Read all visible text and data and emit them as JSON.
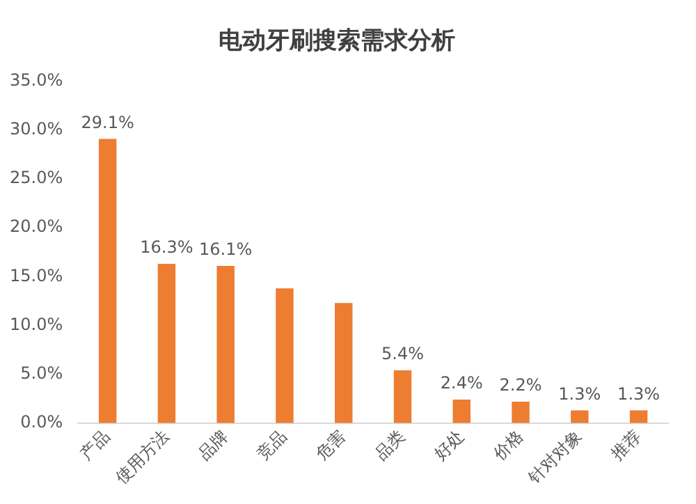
{
  "chart_data": {
    "type": "bar",
    "title": "电动牙刷搜索需求分析",
    "categories": [
      "产品",
      "使用方法",
      "品牌",
      "竞品",
      "危害",
      "品类",
      "好处",
      "价格",
      "针对对象",
      "推荐"
    ],
    "values": [
      29.1,
      16.3,
      16.1,
      13.8,
      12.3,
      5.4,
      2.4,
      2.2,
      1.3,
      1.3
    ],
    "value_labels": [
      "29.1%",
      "16.3%",
      "16.1%",
      null,
      null,
      "5.4%",
      "2.4%",
      "2.2%",
      "1.3%",
      "1.3%"
    ],
    "color": "#ed7d31",
    "ylim": [
      0,
      35
    ],
    "yticks": [
      {
        "value": 0,
        "label": "0.0%"
      },
      {
        "value": 5,
        "label": "5.0%"
      },
      {
        "value": 10,
        "label": "10.0%"
      },
      {
        "value": 15,
        "label": "15.0%"
      },
      {
        "value": 20,
        "label": "20.0%"
      },
      {
        "value": 25,
        "label": "25.0%"
      },
      {
        "value": 30,
        "label": "30.0%"
      },
      {
        "value": 35,
        "label": "35.0%"
      }
    ],
    "grid": false,
    "legend": false
  }
}
